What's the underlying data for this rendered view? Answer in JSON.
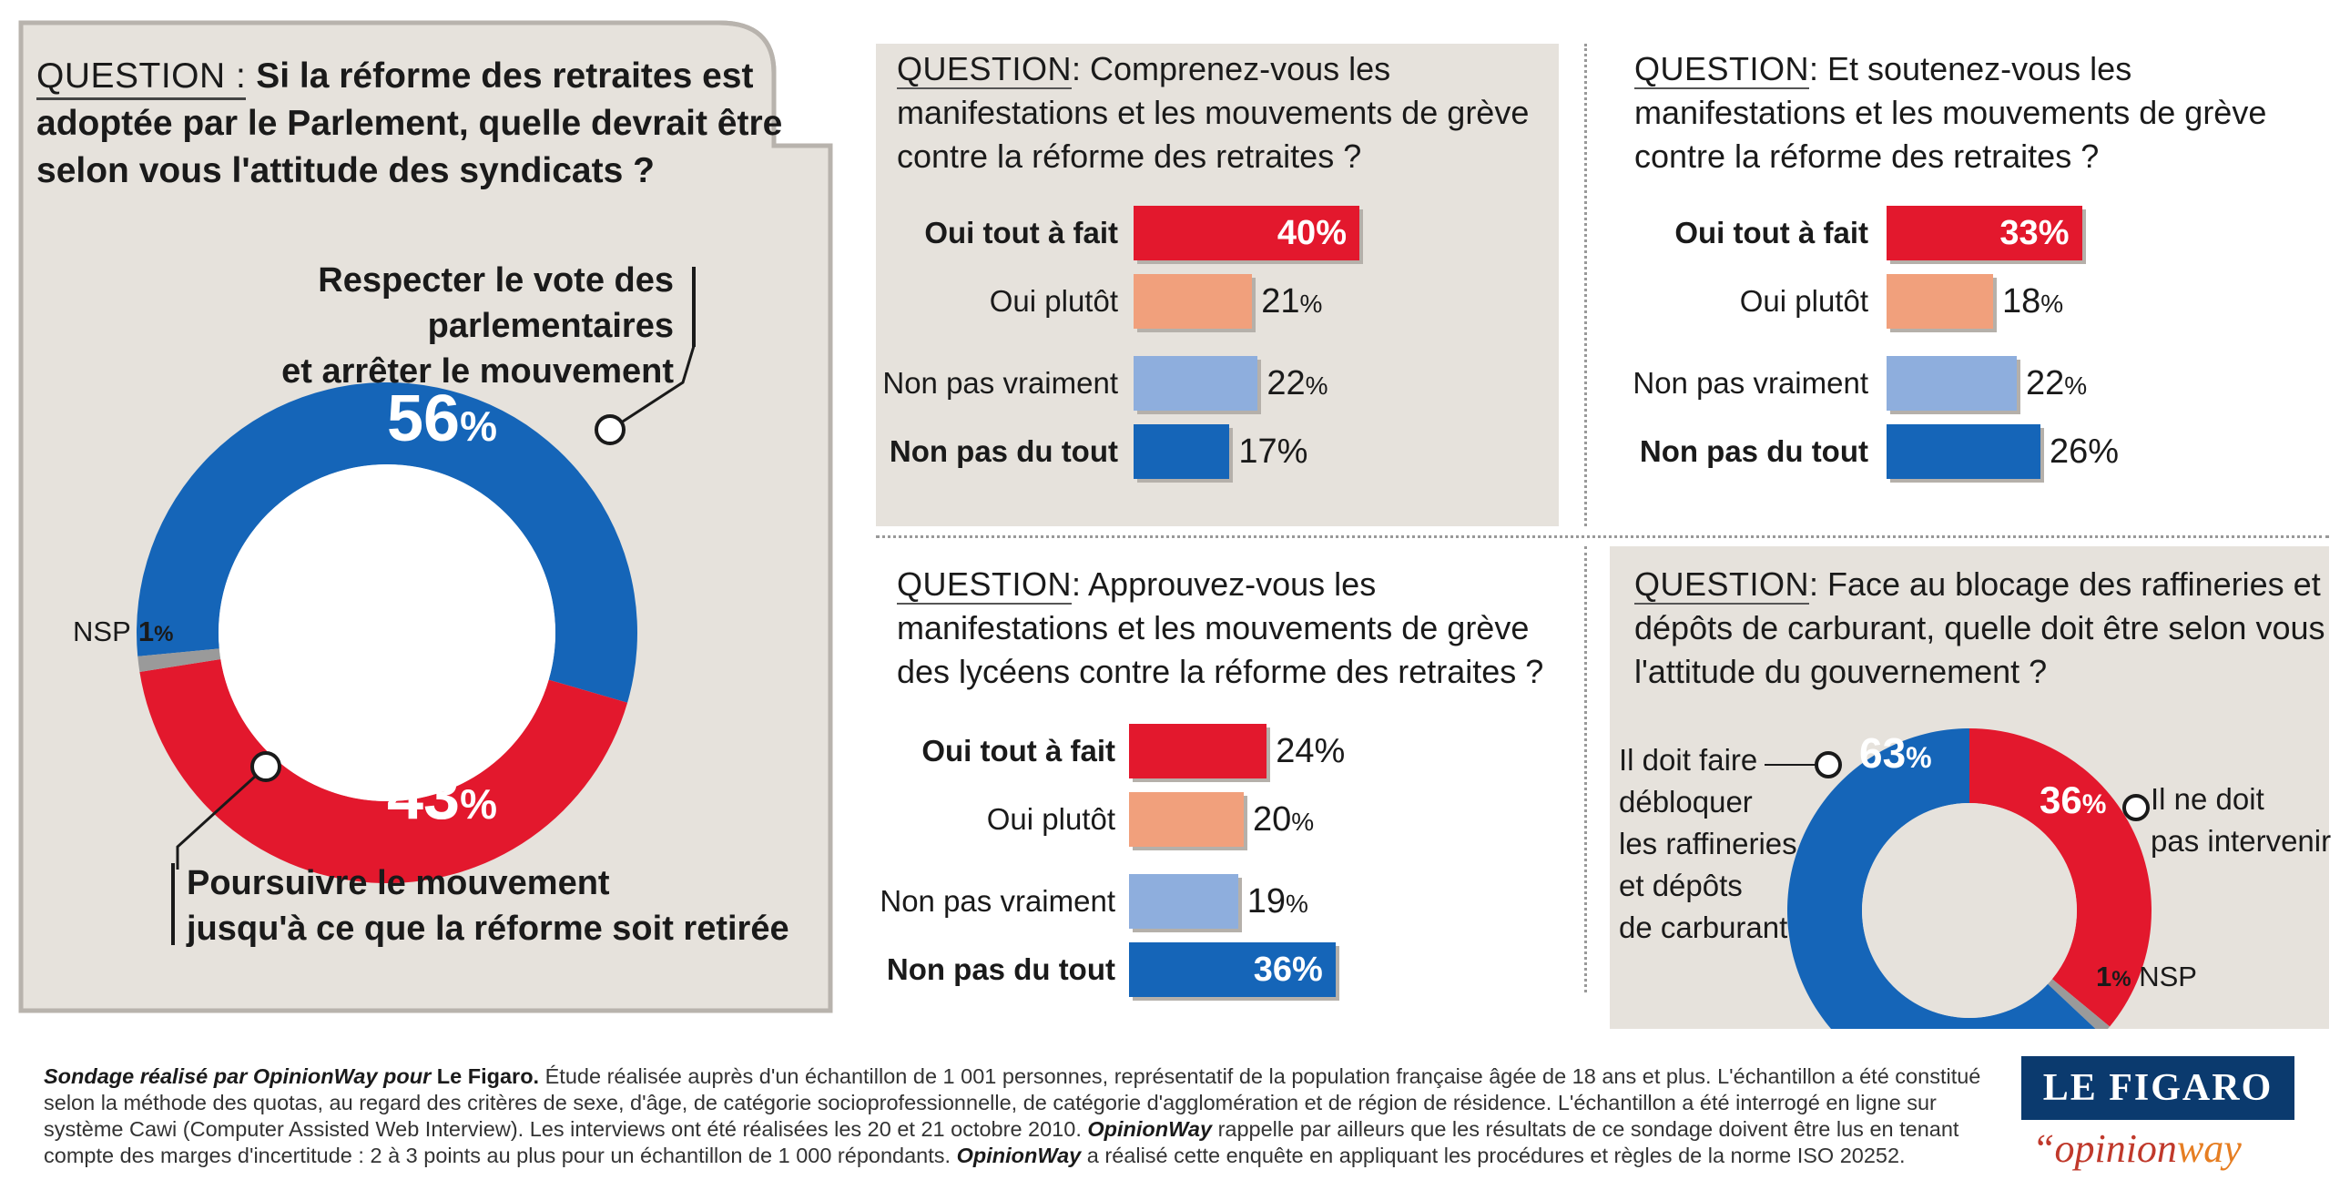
{
  "colors": {
    "blue": "#1565b8",
    "red": "#e3182d",
    "salmon": "#f1a07c",
    "lightblue": "#8eaedd",
    "grey_panel": "#e6e2dc",
    "nsp_grey": "#9a9a9a"
  },
  "panel1": {
    "question_tag": "QUESTION :",
    "question_text": "Si la réforme des retraites est adoptée par le Parlement, quelle devrait être selon vous l'attitude des syndicats ?",
    "label_top_line1": "Respecter le vote des parlementaires",
    "label_top_line2": "et arrêter le mouvement",
    "label_bottom_line1": "Poursuivre le mouvement",
    "label_bottom_line2": "jusqu'à ce que la réforme soit retirée",
    "nsp_label": "NSP",
    "value_blue": "56",
    "value_red": "43",
    "value_nsp": "1",
    "pct": "%"
  },
  "panel2": {
    "question_tag": "QUESTION",
    "question_text": ": Comprenez-vous les manifestations et les mouvements de grève contre la réforme des retraites ?",
    "rows": [
      {
        "label": "Oui tout à fait",
        "value": "40"
      },
      {
        "label": "Oui plutôt",
        "value": "21"
      },
      {
        "label": "Non pas vraiment",
        "value": "22"
      },
      {
        "label": "Non pas du tout",
        "value": "17"
      }
    ]
  },
  "panel3": {
    "question_tag": "QUESTION",
    "question_text": ": Et soutenez-vous les manifestations et les mouvements de grève contre la réforme des retraites ?",
    "rows": [
      {
        "label": "Oui tout à fait",
        "value": "33"
      },
      {
        "label": "Oui plutôt",
        "value": "18"
      },
      {
        "label": "Non pas vraiment",
        "value": "22"
      },
      {
        "label": "Non pas du tout",
        "value": "26"
      }
    ]
  },
  "panel4": {
    "question_tag": "QUESTION",
    "question_text": ": Approuvez-vous les manifestations et les mouvements de grève des lycéens contre la réforme des retraites ?",
    "rows": [
      {
        "label": "Oui tout à fait",
        "value": "24"
      },
      {
        "label": "Oui plutôt",
        "value": "20"
      },
      {
        "label": "Non pas vraiment",
        "value": "19"
      },
      {
        "label": "Non pas du tout",
        "value": "36"
      }
    ]
  },
  "panel5": {
    "question_tag": "QUESTION",
    "question_text": ": Face au blocage des raffineries et dépôts de carburant, quelle doit être selon vous l'attitude du gouvernement ?",
    "left_label_lines": [
      "Il doit faire",
      "débloquer",
      "les raffineries",
      "et dépôts",
      "de carburant"
    ],
    "right_label_lines": [
      "Il ne doit",
      "pas intervenir"
    ],
    "nsp_label": "NSP",
    "value_blue": "63",
    "value_red": "36",
    "value_nsp": "1"
  },
  "footer": {
    "lead_italic": "Sondage réalisé par OpinionWay pour",
    "lead_bold": "Le Figaro.",
    "text1": "Étude réalisée auprès d'un échantillon de 1 001 personnes, représentatif de la population française âgée de 18 ans et plus. L'échantillon a été constitué selon la méthode des quotas, au regard des critères de sexe, d'âge, de catégorie socioprofessionnelle, de catégorie d'agglomération et de région de résidence. L'échantillon a été interrogé en ligne sur système Cawi (Computer Assisted Web Interview). Les interviews ont été réalisées les 20 et 21 octobre 2010.",
    "brand1": "OpinionWay",
    "text2": "rappelle par ailleurs que les résultats de ce sondage doivent être lus en tenant compte des marges d'incertitude : 2 à 3 points au plus pour un échantillon de 1 000 répondants.",
    "brand2": "OpinionWay",
    "text3": "a réalisé cette enquête en appliquant les procédures et règles de la norme ISO 20252."
  },
  "logos": {
    "figaro": "LE FIGARO",
    "opinionway_quote": "“",
    "opinionway_a": "opinion",
    "opinionway_b": "way"
  },
  "chart_data": [
    {
      "type": "pie",
      "title": "Si la réforme des retraites est adoptée par le Parlement, quelle devrait être selon vous l'attitude des syndicats ?",
      "categories": [
        "Respecter le vote des parlementaires et arrêter le mouvement",
        "Poursuivre le mouvement jusqu'à ce que la réforme soit retirée",
        "NSP"
      ],
      "values": [
        56,
        43,
        1
      ]
    },
    {
      "type": "bar",
      "title": "Comprenez-vous les manifestations et les mouvements de grève contre la réforme des retraites ?",
      "categories": [
        "Oui tout à fait",
        "Oui plutôt",
        "Non pas vraiment",
        "Non pas du tout"
      ],
      "values": [
        40,
        21,
        22,
        17
      ]
    },
    {
      "type": "bar",
      "title": "Et soutenez-vous les manifestations et les mouvements de grève contre la réforme des retraites ?",
      "categories": [
        "Oui tout à fait",
        "Oui plutôt",
        "Non pas vraiment",
        "Non pas du tout"
      ],
      "values": [
        33,
        18,
        22,
        26
      ]
    },
    {
      "type": "bar",
      "title": "Approuvez-vous les manifestations et les mouvements de grève des lycéens contre la réforme des retraites ?",
      "categories": [
        "Oui tout à fait",
        "Oui plutôt",
        "Non pas vraiment",
        "Non pas du tout"
      ],
      "values": [
        24,
        20,
        19,
        36
      ]
    },
    {
      "type": "pie",
      "title": "Face au blocage des raffineries et dépôts de carburant, quelle doit être selon vous l'attitude du gouvernement ?",
      "categories": [
        "Il doit faire débloquer les raffineries et dépôts de carburant",
        "Il ne doit pas intervenir",
        "NSP"
      ],
      "values": [
        63,
        36,
        1
      ]
    }
  ]
}
